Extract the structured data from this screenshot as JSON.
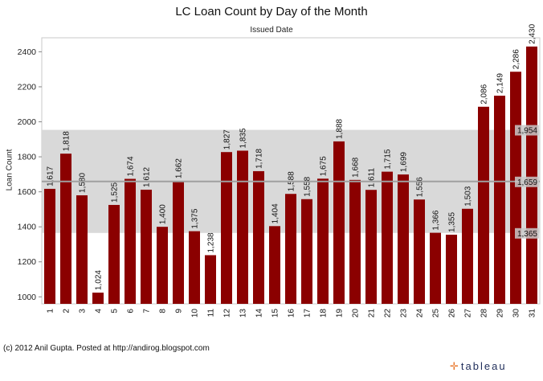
{
  "chart_data": {
    "type": "bar",
    "title": "LC Loan Count by Day of the Month",
    "subtitle": "Issued Date",
    "ylabel": "Loan Count",
    "ylim": [
      960,
      2480
    ],
    "yticks": [
      1000,
      1200,
      1400,
      1600,
      1800,
      2000,
      2200,
      2400
    ],
    "categories": [
      "1",
      "2",
      "3",
      "4",
      "5",
      "6",
      "7",
      "8",
      "9",
      "10",
      "11",
      "12",
      "13",
      "14",
      "15",
      "16",
      "17",
      "18",
      "19",
      "20",
      "21",
      "22",
      "23",
      "24",
      "25",
      "26",
      "27",
      "28",
      "29",
      "30",
      "31"
    ],
    "values": [
      1617,
      1818,
      1580,
      1024,
      1525,
      1674,
      1612,
      1400,
      1662,
      1375,
      1238,
      1827,
      1835,
      1718,
      1404,
      1588,
      1558,
      1675,
      1888,
      1668,
      1611,
      1715,
      1699,
      1556,
      1366,
      1355,
      1503,
      2086,
      2149,
      2286,
      2430
    ],
    "value_labels": [
      "1,617",
      "1,818",
      "1,580",
      "1,024",
      "1,525",
      "1,674",
      "1,612",
      "1,400",
      "1,662",
      "1,375",
      "1,238",
      "1,827",
      "1,835",
      "1,718",
      "1,404",
      "1,588",
      "1,558",
      "1,675",
      "1,888",
      "1,668",
      "1,611",
      "1,715",
      "1,699",
      "1,556",
      "1,366",
      "1,355",
      "1,503",
      "2,086",
      "2,149",
      "2,286",
      "2,430"
    ],
    "reference_band": {
      "lower": 1365,
      "upper": 1954,
      "lower_label": "1,365",
      "upper_label": "1,954"
    },
    "reference_line": {
      "value": 1659,
      "label": "1,659"
    },
    "bar_color": "#8b0000",
    "band_color": "#d9d9d9",
    "line_color": "#a0a0a0"
  },
  "footer": {
    "credit": "(c) 2012 Anil Gupta. Posted at http://andirog.blogspot.com",
    "logo_text": "tableau"
  }
}
